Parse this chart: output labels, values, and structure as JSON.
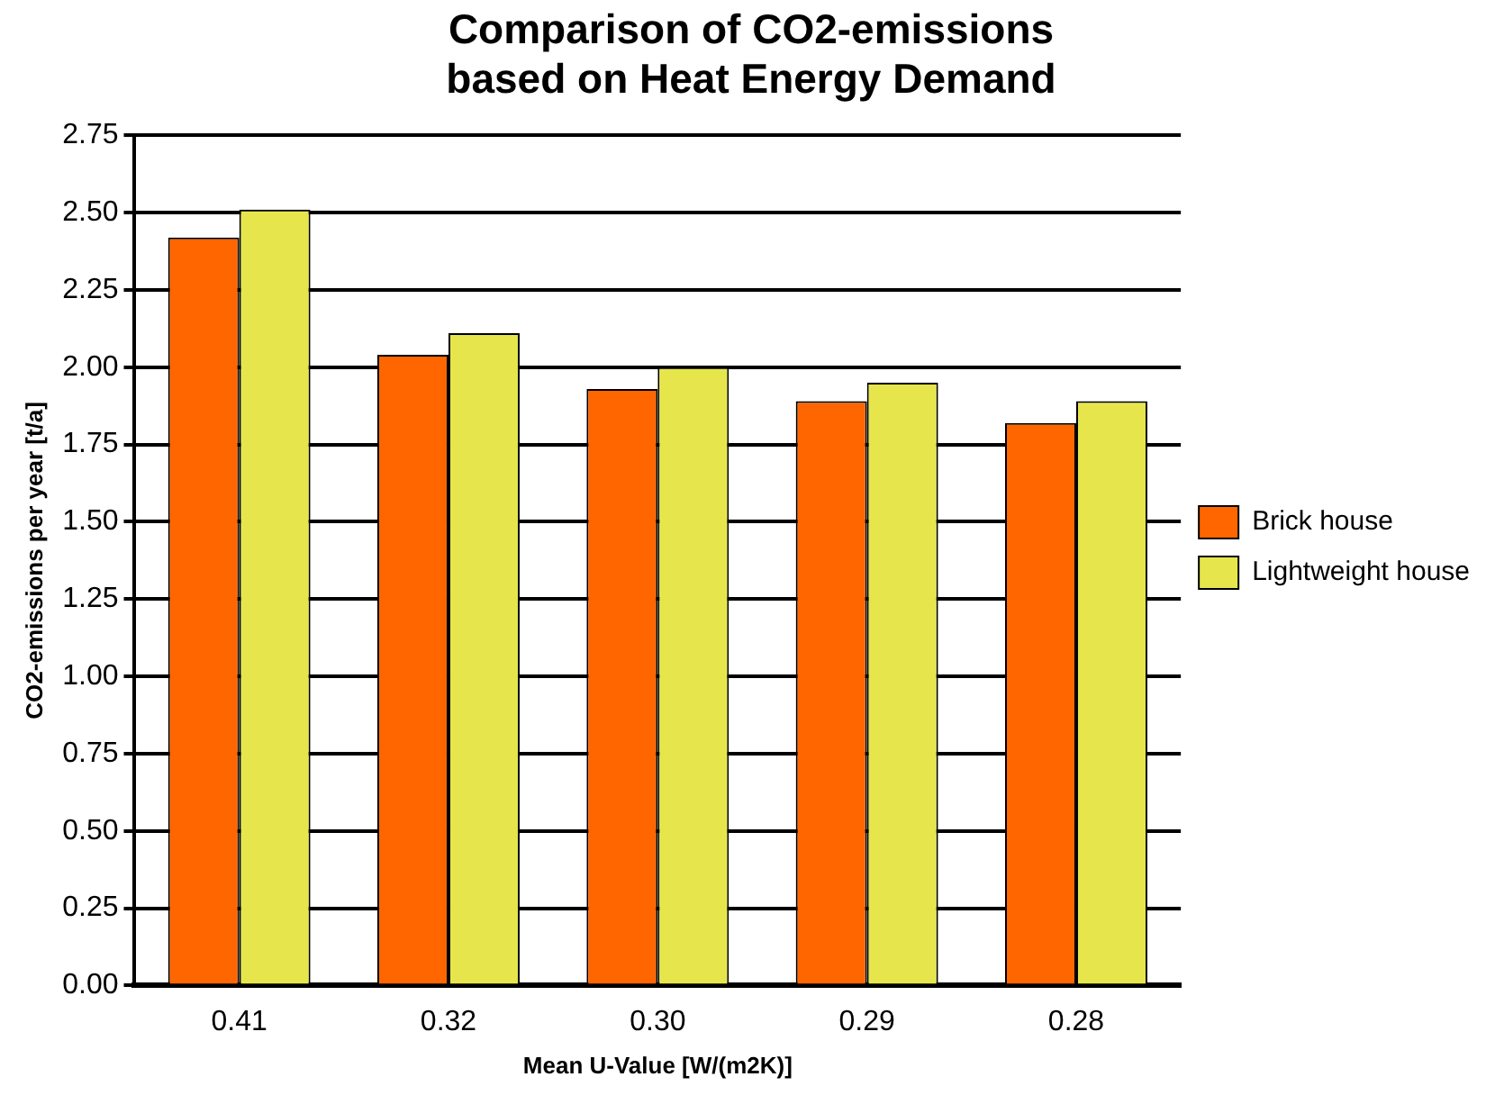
{
  "chart_data": {
    "type": "bar",
    "title": "Comparison of CO2-emissions\nbased on Heat Energy Demand",
    "xlabel": "Mean U-Value [W/(m2K)]",
    "ylabel": "CO2-emissions per year [t/a]",
    "categories": [
      "0.41",
      "0.32",
      "0.30",
      "0.29",
      "0.28"
    ],
    "series": [
      {
        "name": "Brick house",
        "color": "#ff6600",
        "values": [
          2.42,
          2.04,
          1.93,
          1.89,
          1.82
        ]
      },
      {
        "name": "Lightweight house",
        "color": "#e6e64c",
        "values": [
          2.51,
          2.11,
          2.0,
          1.95,
          1.89
        ]
      }
    ],
    "ylim": [
      0,
      2.75
    ],
    "yticks": [
      {
        "value": 0,
        "label": "0.00"
      },
      0.25,
      {
        "value": 0.5,
        "label": "0.50"
      },
      0.75,
      {
        "value": 1,
        "label": "1.00"
      },
      1.25,
      {
        "value": 1.5,
        "label": "1.50"
      },
      1.75,
      {
        "value": 2,
        "label": "2.00"
      },
      2.25,
      {
        "value": 2.5,
        "label": "2.50"
      },
      2.75
    ],
    "grid": "y",
    "legend": "right"
  }
}
